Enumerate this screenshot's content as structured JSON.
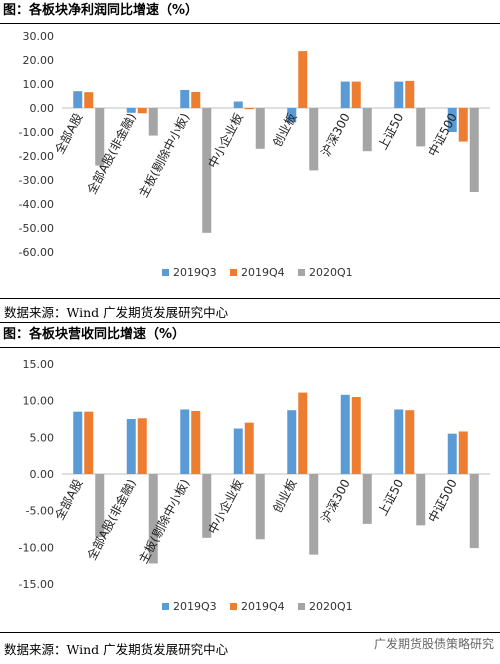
{
  "figures": [
    {
      "title": "图：各板块净利润同比增速（%）",
      "source": "数据来源：Wind 广发期货发展研究中心"
    },
    {
      "title": "图：各板块营收同比增速（%）",
      "source": "数据来源：Wind 广发期货发展研究中心"
    }
  ],
  "watermark": "广发期货股债策略研究",
  "colors": {
    "s1": "#5B9BD5",
    "s2": "#ED7D31",
    "s3": "#A5A5A5"
  },
  "chart_data": [
    {
      "type": "bar",
      "title": "图：各板块净利润同比增速（%）",
      "categories": [
        "全部A股",
        "全部A股(非金融)",
        "主板(剔除中小板)",
        "中小企业板",
        "创业板",
        "沪深300",
        "上证50",
        "中证500"
      ],
      "series": [
        {
          "name": "2019Q3",
          "values": [
            7.0,
            -2.0,
            7.5,
            2.7,
            -6.0,
            11.0,
            11.0,
            -10.0
          ]
        },
        {
          "name": "2019Q4",
          "values": [
            6.6,
            -2.2,
            6.7,
            -0.5,
            23.7,
            11.0,
            11.3,
            -14.0
          ]
        },
        {
          "name": "2020Q1",
          "values": [
            -24.0,
            -11.5,
            -52.0,
            -17.0,
            -26.0,
            -18.0,
            -16.0,
            -35.0
          ]
        }
      ],
      "yticks": [
        "30.00",
        "20.00",
        "10.00",
        "0.00",
        "-10.00",
        "-20.00",
        "-30.00",
        "-40.00",
        "-50.00",
        "-60.00"
      ],
      "ylim": [
        -60,
        30
      ],
      "grid": false,
      "legend": "bottom"
    },
    {
      "type": "bar",
      "title": "图：各板块营收同比增速（%）",
      "categories": [
        "全部A股",
        "全部A股(非金融)",
        "主板(剔除中小板)",
        "中小企业板",
        "创业板",
        "沪深300",
        "上证50",
        "中证500"
      ],
      "series": [
        {
          "name": "2019Q3",
          "values": [
            8.5,
            7.5,
            8.8,
            6.2,
            8.7,
            10.8,
            8.8,
            5.5
          ]
        },
        {
          "name": "2019Q4",
          "values": [
            8.5,
            7.6,
            8.6,
            7.0,
            11.1,
            10.5,
            8.7,
            5.8
          ]
        },
        {
          "name": "2020Q1",
          "values": [
            -8.6,
            -12.2,
            -8.7,
            -8.9,
            -11.0,
            -6.8,
            -7.0,
            -10.1
          ]
        }
      ],
      "yticks": [
        "15.00",
        "10.00",
        "5.00",
        "0.00",
        "-5.00",
        "-10.00",
        "-15.00"
      ],
      "ylim": [
        -15,
        15
      ],
      "grid": false,
      "legend": "bottom"
    }
  ]
}
